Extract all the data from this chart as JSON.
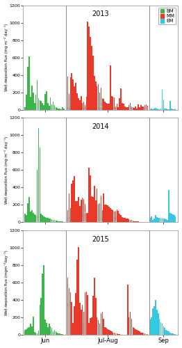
{
  "titles": [
    "2013",
    "2014",
    "2015"
  ],
  "ylim": [
    0,
    1200
  ],
  "yticks": [
    0,
    200,
    400,
    600,
    800,
    1000,
    1200
  ],
  "colors": {
    "BM": "#3cb54a",
    "MM": "#e8392a",
    "EM": "#35c8e0"
  },
  "xtick_labels": [
    "Jun",
    "Jul-Aug",
    "Sep"
  ],
  "background": "#ffffff",
  "data_2013_bm": [
    30,
    170,
    490,
    610,
    150,
    280,
    200,
    80,
    170,
    340,
    130,
    110,
    100,
    75,
    55,
    180,
    210,
    80,
    45,
    140,
    60,
    90,
    50,
    30,
    20,
    15,
    10,
    5,
    25,
    15
  ],
  "data_2013_mm": [
    160,
    380,
    180,
    370,
    420,
    350,
    270,
    305,
    190,
    130,
    110,
    160,
    75,
    90,
    55,
    150,
    1010,
    960,
    840,
    730,
    620,
    390,
    325,
    270,
    290,
    200,
    250,
    135,
    125,
    95,
    80,
    70,
    65,
    510,
    160,
    145,
    140,
    40,
    65,
    25,
    130,
    245,
    80,
    65,
    40,
    30,
    25,
    55,
    80,
    35,
    25,
    20,
    35,
    15,
    60,
    30,
    55,
    40,
    40,
    50,
    60,
    45
  ],
  "data_2013_em": [
    5,
    10,
    5,
    15,
    20,
    10,
    5,
    8,
    12,
    230,
    120,
    15,
    10,
    5,
    8,
    98,
    12,
    5,
    8,
    15
  ],
  "data_2014_bm": [
    100,
    80,
    220,
    290,
    120,
    140,
    110,
    90,
    80,
    600,
    1080,
    860,
    100,
    85,
    70,
    60,
    55,
    50,
    45,
    40,
    35,
    30,
    25,
    20,
    18,
    15,
    12,
    10,
    8,
    6
  ],
  "data_2014_mm": [
    50,
    140,
    330,
    160,
    440,
    480,
    535,
    245,
    240,
    290,
    185,
    260,
    285,
    265,
    210,
    110,
    105,
    630,
    540,
    300,
    290,
    420,
    255,
    390,
    215,
    220,
    310,
    140,
    330,
    200,
    205,
    195,
    180,
    160,
    150,
    140,
    120,
    135,
    150,
    130,
    100,
    80,
    60,
    55,
    50,
    45,
    40,
    35,
    30,
    25,
    20,
    15,
    12,
    10,
    8,
    6,
    5,
    4,
    3,
    2,
    3,
    5
  ],
  "data_2014_em": [
    50,
    70,
    30,
    40,
    80,
    60,
    55,
    50,
    55,
    50,
    45,
    40,
    35,
    30,
    370,
    110,
    100,
    90,
    80,
    70
  ],
  "data_2015_bm": [
    60,
    70,
    80,
    90,
    130,
    100,
    210,
    35,
    25,
    20,
    50,
    350,
    430,
    710,
    800,
    180,
    140,
    90,
    130,
    100,
    80,
    40,
    60,
    45,
    30,
    20,
    15,
    10,
    8,
    5
  ],
  "data_2015_mm": [
    790,
    660,
    540,
    490,
    380,
    140,
    330,
    480,
    870,
    1010,
    370,
    290,
    350,
    270,
    490,
    500,
    460,
    140,
    195,
    200,
    450,
    660,
    430,
    200,
    170,
    130,
    250,
    265,
    190,
    90,
    80,
    70,
    60,
    50,
    40,
    30,
    25,
    20,
    15,
    10,
    8,
    6,
    5,
    4,
    3,
    2,
    580,
    200,
    265,
    190,
    90,
    80,
    70,
    60,
    50,
    40,
    30,
    25,
    20,
    15,
    10,
    8
  ],
  "data_2015_em": [
    180,
    200,
    310,
    330,
    405,
    290,
    250,
    190,
    150,
    130,
    100,
    80,
    60,
    50,
    40,
    30,
    20,
    15,
    10,
    8
  ],
  "ylabels": [
    "Wet deposition flux (mg m⁻² day⁻¹)",
    "Wet deposition flux (mg m⁻² day⁻¹)",
    "Wet deposition flux (mgm⁻²day⁻¹)"
  ]
}
